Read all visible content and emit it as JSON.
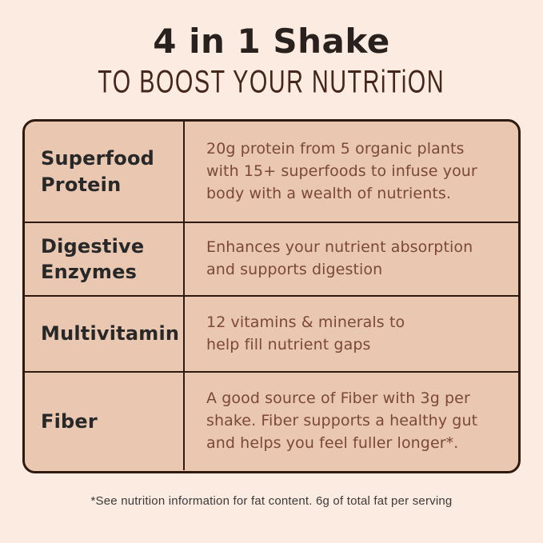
{
  "page": {
    "title": "4 in 1 Shake",
    "subtitle": "TO BOOST YOUR NUTRiTiON",
    "footnote": "*See nutrition information for fat content. 6g of total fat per serving"
  },
  "colors": {
    "background": "#fcebe1",
    "table_fill": "#e9c7b0",
    "line": "#2e1a0e",
    "title_text": "#29211e",
    "subtitle_text": "#44261a",
    "label_text": "#282828",
    "desc_text": "#7b4936",
    "footnote_text": "#3b3b3b"
  },
  "table": {
    "rows": [
      {
        "label": "Superfood Protein",
        "desc_lines": [
          "20g protein from 5 organic plants",
          "with 15+ superfoods to infuse your",
          "body with a wealth of nutrients."
        ]
      },
      {
        "label": "Digestive Enzymes",
        "desc_lines": [
          "Enhances your nutrient absorption",
          "and supports digestion"
        ]
      },
      {
        "label": "Multivitamin",
        "desc_lines": [
          "12 vitamins & minerals to",
          "help fill nutrient gaps"
        ]
      },
      {
        "label": "Fiber",
        "desc_lines": [
          "A good source of Fiber with 3g per",
          "shake. Fiber supports a healthy gut",
          "and helps you feel fuller longer*."
        ]
      }
    ]
  }
}
